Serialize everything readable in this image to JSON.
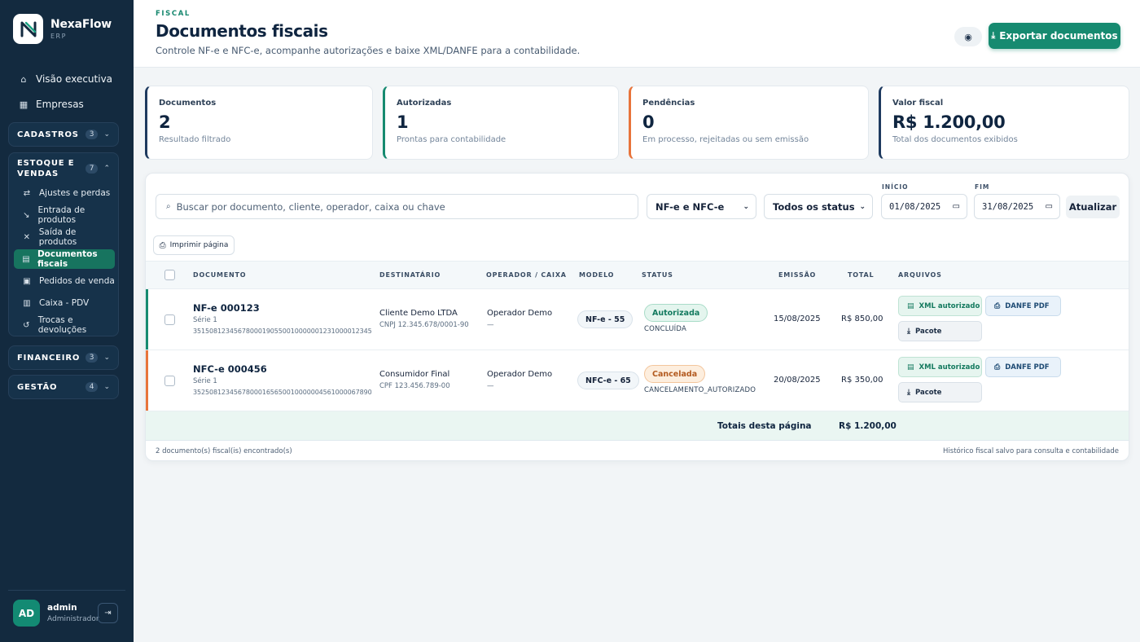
{
  "brand": {
    "name": "NexaFlow",
    "sub": "ERP"
  },
  "sidebar": {
    "top": [
      {
        "label": "Visão executiva",
        "icon": "home-icon"
      },
      {
        "label": "Empresas",
        "icon": "building-icon"
      }
    ],
    "groups": {
      "cadastros": {
        "label": "CADASTROS",
        "count": "3"
      },
      "estoque": {
        "label_line1": "ESTOQUE E",
        "label_line2": "VENDAS",
        "count": "7"
      },
      "financeiro": {
        "label": "FINANCEIRO",
        "count": "3"
      },
      "gestao": {
        "label": "GESTÃO",
        "count": "4"
      }
    },
    "estoque_items": [
      {
        "label": "Ajustes e perdas",
        "icon": "swap-icon"
      },
      {
        "label": "Entrada de produtos",
        "icon": "arrow-in-icon"
      },
      {
        "label": "Saída de produtos",
        "icon": "x-icon"
      },
      {
        "label": "Documentos fiscais",
        "icon": "document-icon",
        "active": true
      },
      {
        "label": "Pedidos de venda",
        "icon": "order-icon"
      },
      {
        "label": "Caixa - PDV",
        "icon": "register-icon"
      },
      {
        "label": "Trocas e devoluções",
        "icon": "return-icon"
      }
    ]
  },
  "user": {
    "initials": "AD",
    "name": "admin",
    "role": "Administrador"
  },
  "header": {
    "eyebrow": "FISCAL",
    "title": "Documentos fiscais",
    "subtitle": "Controle NF-e e NFC-e, acompanhe autorizações e baixe XML/DANFE para a contabilidade.",
    "export_label": "Exportar documentos"
  },
  "kpis": [
    {
      "label": "Documentos",
      "value": "2",
      "note": "Resultado filtrado",
      "color": "#1e3a5f"
    },
    {
      "label": "Autorizadas",
      "value": "1",
      "note": "Prontas para contabilidade",
      "color": "#168a70"
    },
    {
      "label": "Pendências",
      "value": "0",
      "note": "Em processo, rejeitadas ou sem emissão",
      "color": "#e8743b"
    },
    {
      "label": "Valor fiscal",
      "value": "R$ 1.200,00",
      "note": "Total dos documentos exibidos",
      "color": "#1e3a5f"
    }
  ],
  "filters": {
    "search_placeholder": "Buscar por documento, cliente, operador, caixa ou chave",
    "model": "NF-e e NFC-e",
    "status": "Todos os status",
    "start_label": "INÍCIO",
    "start": "01/08/2025",
    "end_label": "FIM",
    "end": "31/08/2025",
    "refresh": "Atualizar",
    "print": "Imprimir página"
  },
  "table": {
    "columns": {
      "documento": "DOCUMENTO",
      "destinatario": "DESTINATÁRIO",
      "operador": "OPERADOR / CAIXA",
      "modelo": "MODELO",
      "status": "STATUS",
      "emissao": "EMISSÃO",
      "total": "TOTAL",
      "arquivos": "ARQUIVOS"
    },
    "rows": [
      {
        "number": "NF-e 000123",
        "serie": "Série 1",
        "key": "35150812345678000190550010000001231000012345",
        "client": "Cliente Demo LTDA",
        "client_doc": "CNPJ 12.345.678/0001-90",
        "operator": "Operador Demo",
        "register": "—",
        "model": "NF-e - 55",
        "status": "Autorizada",
        "status_sub": "CONCLUÍDA",
        "date": "15/08/2025",
        "total": "R$ 850,00",
        "accent": "#168a70",
        "xml": "XML autorizado",
        "danfe": "DANFE PDF",
        "pack": "Pacote"
      },
      {
        "number": "NFC-e 000456",
        "serie": "Série 1",
        "key": "35250812345678000165650010000004561000067890",
        "client": "Consumidor Final",
        "client_doc": "CPF 123.456.789-00",
        "operator": "Operador Demo",
        "register": "—",
        "model": "NFC-e - 65",
        "status": "Cancelada",
        "status_sub": "CANCELAMENTO_AUTORIZADO",
        "date": "20/08/2025",
        "total": "R$ 350,00",
        "accent": "#e8743b",
        "xml": "XML autorizado",
        "danfe": "DANFE PDF",
        "pack": "Pacote"
      }
    ],
    "totals_label": "Totais desta página",
    "totals_value": "R$ 1.200,00"
  },
  "footer": {
    "left": "2 documento(s) fiscal(is) encontrado(s)",
    "right": "Histórico fiscal salvo para consulta e contabilidade"
  }
}
